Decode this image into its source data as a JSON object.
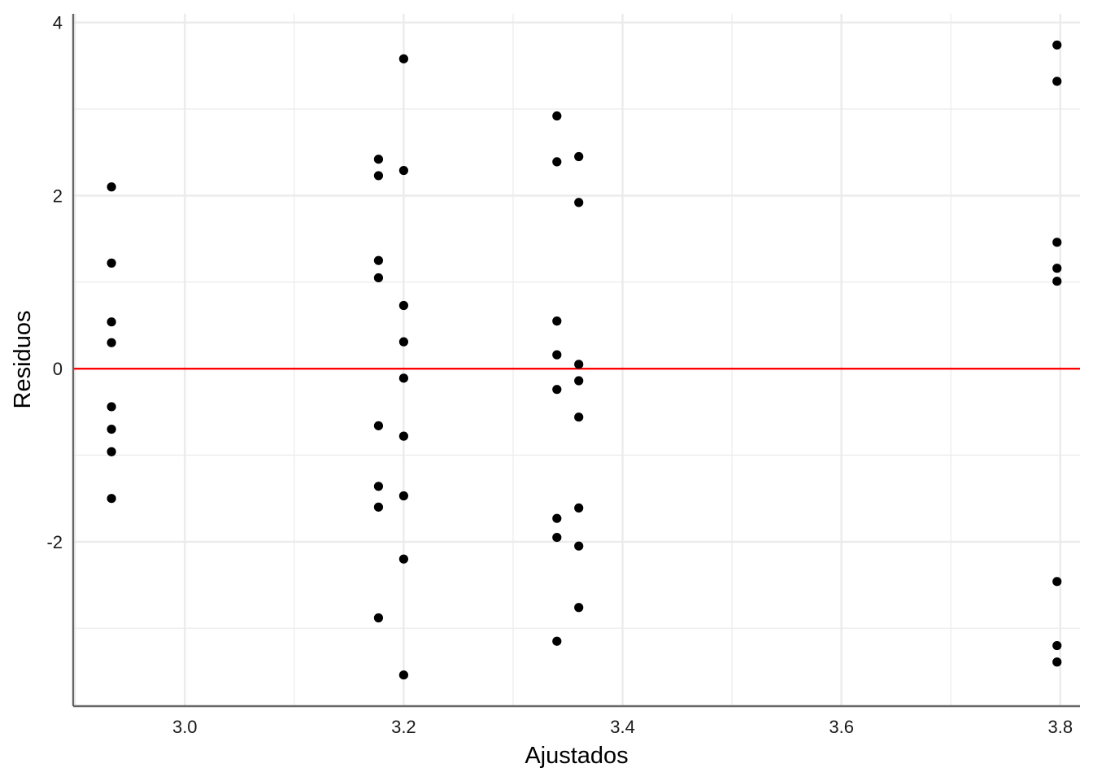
{
  "chart_data": {
    "type": "scatter",
    "title": "",
    "xlabel": "Ajustados",
    "ylabel": "Residuos",
    "xlim": [
      2.898,
      3.818
    ],
    "ylim": [
      -3.9,
      4.1
    ],
    "xticks": [
      {
        "value": 3.0,
        "label": "3.0"
      },
      {
        "value": 3.2,
        "label": "3.2"
      },
      {
        "value": 3.4,
        "label": "3.4"
      },
      {
        "value": 3.6,
        "label": "3.6"
      },
      {
        "value": 3.8,
        "label": "3.8"
      }
    ],
    "yticks": [
      {
        "value": -2,
        "label": "-2"
      },
      {
        "value": 0,
        "label": "0"
      },
      {
        "value": 2,
        "label": "2"
      },
      {
        "value": 4,
        "label": "4"
      }
    ],
    "x_minor_grid": [
      2.9,
      3.1,
      3.3,
      3.5,
      3.7
    ],
    "y_minor_grid": [
      -3,
      -1,
      1,
      3
    ],
    "grid": true,
    "reference_line": {
      "y": 0,
      "color": "#ff0000"
    },
    "point_color": "#000000",
    "grid_color": "#ebebeb",
    "axis_color": "#666666",
    "series": [
      {
        "points": [
          {
            "x": 2.933,
            "y": 2.1
          },
          {
            "x": 2.933,
            "y": 1.22
          },
          {
            "x": 2.933,
            "y": 0.54
          },
          {
            "x": 2.933,
            "y": 0.3
          },
          {
            "x": 2.933,
            "y": -0.44
          },
          {
            "x": 2.933,
            "y": -0.7
          },
          {
            "x": 2.933,
            "y": -0.96
          },
          {
            "x": 2.933,
            "y": -1.5
          },
          {
            "x": 3.177,
            "y": 2.42
          },
          {
            "x": 3.177,
            "y": 2.23
          },
          {
            "x": 3.177,
            "y": 1.25
          },
          {
            "x": 3.177,
            "y": 1.05
          },
          {
            "x": 3.177,
            "y": -0.66
          },
          {
            "x": 3.177,
            "y": -1.36
          },
          {
            "x": 3.177,
            "y": -1.6
          },
          {
            "x": 3.177,
            "y": -2.88
          },
          {
            "x": 3.2,
            "y": 3.58
          },
          {
            "x": 3.2,
            "y": 2.29
          },
          {
            "x": 3.2,
            "y": 0.73
          },
          {
            "x": 3.2,
            "y": 0.31
          },
          {
            "x": 3.2,
            "y": -0.11
          },
          {
            "x": 3.2,
            "y": -0.78
          },
          {
            "x": 3.2,
            "y": -1.47
          },
          {
            "x": 3.2,
            "y": -2.2
          },
          {
            "x": 3.2,
            "y": -3.54
          },
          {
            "x": 3.34,
            "y": 2.92
          },
          {
            "x": 3.34,
            "y": 2.39
          },
          {
            "x": 3.34,
            "y": 0.55
          },
          {
            "x": 3.34,
            "y": 0.16
          },
          {
            "x": 3.34,
            "y": -0.24
          },
          {
            "x": 3.34,
            "y": -1.73
          },
          {
            "x": 3.34,
            "y": -1.95
          },
          {
            "x": 3.34,
            "y": -3.15
          },
          {
            "x": 3.36,
            "y": 2.45
          },
          {
            "x": 3.36,
            "y": 1.92
          },
          {
            "x": 3.36,
            "y": 0.05
          },
          {
            "x": 3.36,
            "y": -0.14
          },
          {
            "x": 3.36,
            "y": -0.56
          },
          {
            "x": 3.36,
            "y": -1.61
          },
          {
            "x": 3.36,
            "y": -2.05
          },
          {
            "x": 3.36,
            "y": -2.76
          },
          {
            "x": 3.797,
            "y": 3.74
          },
          {
            "x": 3.797,
            "y": 3.32
          },
          {
            "x": 3.797,
            "y": 1.46
          },
          {
            "x": 3.797,
            "y": 1.16
          },
          {
            "x": 3.797,
            "y": 1.01
          },
          {
            "x": 3.797,
            "y": -2.46
          },
          {
            "x": 3.797,
            "y": -3.2
          },
          {
            "x": 3.797,
            "y": -3.39
          }
        ]
      }
    ]
  }
}
